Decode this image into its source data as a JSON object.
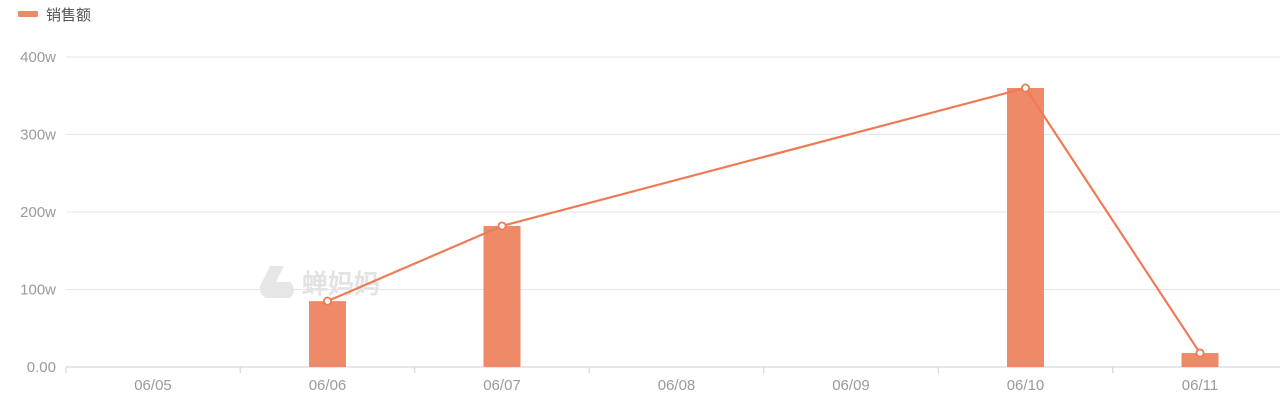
{
  "chart_data": {
    "type": "bar",
    "categories": [
      "06/05",
      "06/06",
      "06/07",
      "06/08",
      "06/09",
      "06/10",
      "06/11"
    ],
    "series": [
      {
        "name": "销售额",
        "kind": "bar",
        "values": [
          0,
          85,
          182,
          0,
          0,
          360,
          18
        ]
      },
      {
        "name": "销售额",
        "kind": "line",
        "points": [
          {
            "x": "06/06",
            "y": 85
          },
          {
            "x": "06/07",
            "y": 182
          },
          {
            "x": "06/10",
            "y": 360
          },
          {
            "x": "06/11",
            "y": 18
          }
        ]
      }
    ],
    "yticks": [
      "0.00",
      "100w",
      "200w",
      "300w",
      "400w"
    ],
    "ylim": [
      0,
      400
    ],
    "title": "",
    "xlabel": "",
    "ylabel": "",
    "grid": true,
    "legend": "top-left",
    "colors": {
      "bar": "#ef8a68",
      "line": "#ee7b55",
      "grid": "#e6e6e6",
      "axis": "#cfcfcf",
      "watermark": "#e3e3e3"
    }
  },
  "watermark": {
    "text": "蝉妈妈",
    "icon": "chanmama-logo-icon"
  }
}
